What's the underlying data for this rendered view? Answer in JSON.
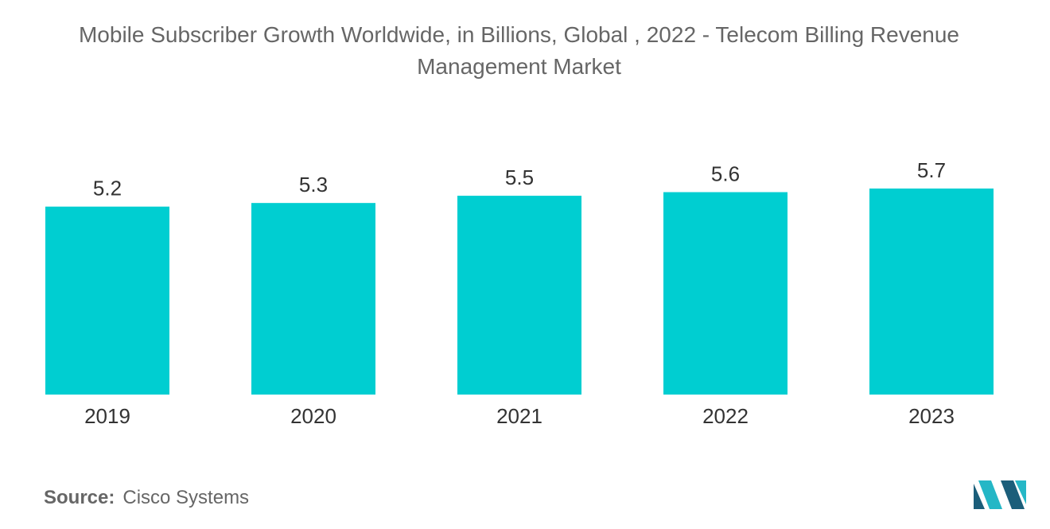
{
  "chart_data": {
    "type": "bar",
    "title": "Mobile Subscriber Growth Worldwide, in Billions, Global , 2022 - Telecom Billing Revenue Management Market",
    "categories": [
      "2019",
      "2020",
      "2021",
      "2022",
      "2023"
    ],
    "values": [
      5.2,
      5.3,
      5.5,
      5.6,
      5.7
    ],
    "value_labels": [
      "5.2",
      "5.3",
      "5.5",
      "5.6",
      "5.7"
    ],
    "xlabel": "",
    "ylabel": "",
    "ylim": [
      0,
      5.7
    ],
    "grid": false,
    "legend": "none",
    "bar_color": "#00ced1"
  },
  "source": {
    "label": "Source:",
    "value": "Cisco Systems"
  },
  "logo": {
    "icon": "mordor-intelligence-logo-icon",
    "colors": [
      "#1b5e7a",
      "#25b7c6"
    ]
  }
}
